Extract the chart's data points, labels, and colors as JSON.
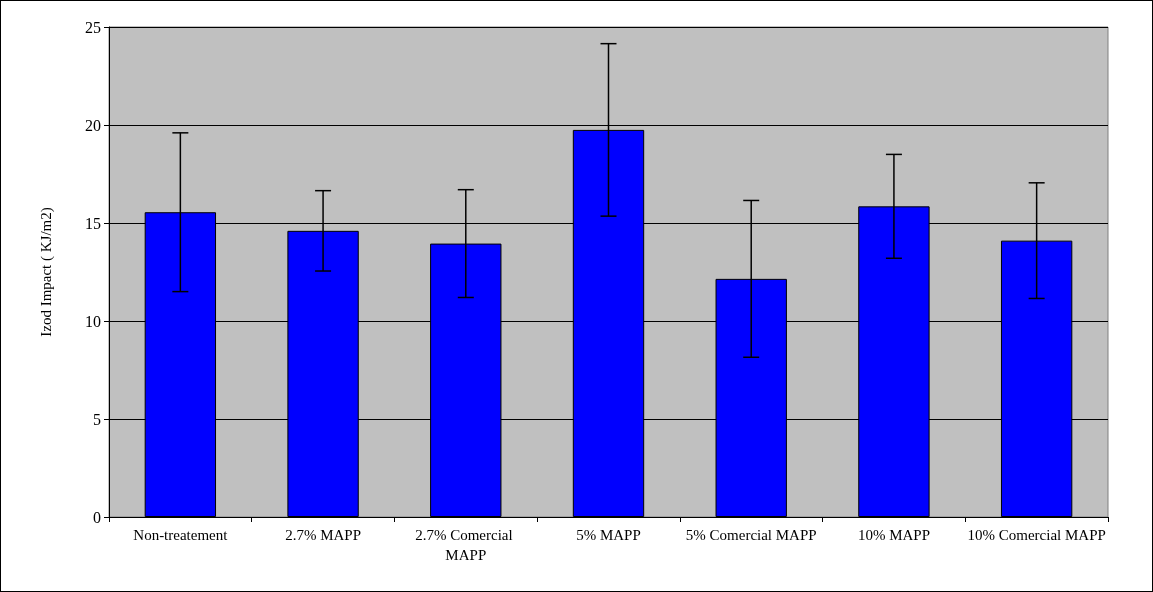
{
  "chart_data": {
    "type": "bar",
    "ylabel": "Izod Impact ( KJ/m2)",
    "categories": [
      "Non-treatement",
      "2.7% MAPP",
      "2.7% Comercial MAPP",
      "5% MAPP",
      "5% Comercial MAPP",
      "10% MAPP",
      "10% Comercial MAPP"
    ],
    "values": [
      15.55,
      14.6,
      13.95,
      19.75,
      12.15,
      15.85,
      14.1
    ],
    "errors": [
      4.05,
      2.05,
      2.75,
      4.4,
      4.0,
      2.65,
      2.95
    ],
    "color": "#0000ff",
    "ylim": [
      0,
      25
    ],
    "yticks": [
      0,
      5,
      10,
      15,
      20,
      25
    ],
    "grid": "y"
  }
}
